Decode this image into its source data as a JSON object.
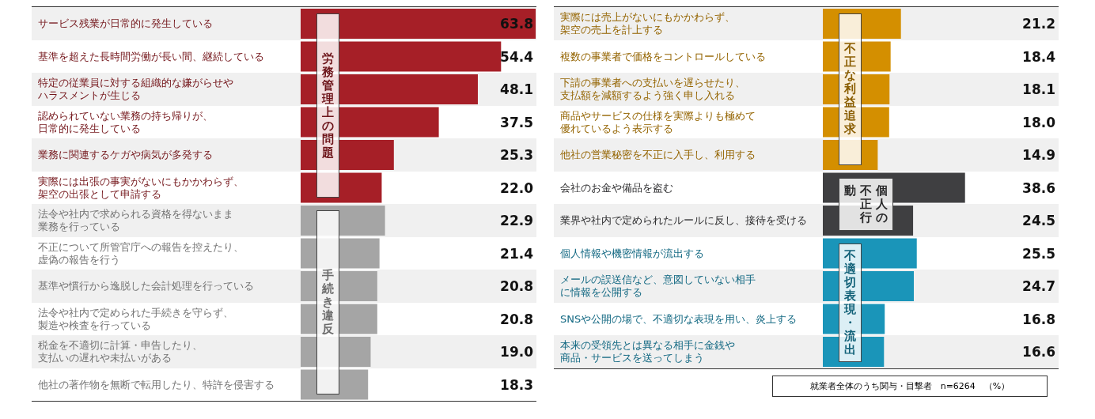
{
  "chart_data": [
    {
      "type": "bar",
      "orientation": "horizontal",
      "categories": [
        "サービス残業が日常的に発生している",
        "基準を超えた長時間労働が長い間、継続している",
        "特定の従業員に対する組織的な嫌がらせやハラスメントが生じる",
        "認められていない業務の持ち帰りが、日常的に発生している",
        "業務に関連するケガや病気が多発する",
        "実際には出張の事実がないにもかかわらず、架空の出張として申請する",
        "法令や社内で求められる資格を得ないまま業務を行っている",
        "不正について所管官庁への報告を控えたり、虚偽の報告を行う",
        "基準や慣行から逸脱した会計処理を行っている",
        "法令や社内で定められた手続きを守らず、製造や検査を行っている",
        "税金を不適切に計算・申告したり、支払いの遅れや未払いがある",
        "他社の著作物を無断で転用したり、特許を侵害する"
      ],
      "values": [
        63.8,
        54.4,
        48.1,
        37.5,
        25.3,
        22.0,
        22.9,
        21.4,
        20.8,
        20.8,
        19.0,
        18.3
      ],
      "value_labels": [
        "63.8",
        "54.4",
        "48.1",
        "37.5",
        "25.3",
        "22.0",
        "22.9",
        "21.4",
        "20.8",
        "20.8",
        "19.0",
        "18.3"
      ],
      "colors": [
        "#a61f27",
        "#a61f27",
        "#a61f27",
        "#a61f27",
        "#a61f27",
        "#a61f27",
        "#a5a5a5",
        "#a5a5a5",
        "#a5a5a5",
        "#a5a5a5",
        "#a5a5a5",
        "#a5a5a5"
      ],
      "xlim": [
        0,
        64
      ],
      "annotations": [
        "労務管理上の問題",
        "手続き違反"
      ]
    },
    {
      "type": "bar",
      "orientation": "horizontal",
      "categories": [
        "実際には売上がないにもかかわらず、架空の売上を計上する",
        "複数の事業者で価格をコントロールしている",
        "下請の事業者への支払いを遅らせたり、支払額を減額するよう強く申し入れる",
        "商品やサービスの仕様を実際よりも極めて優れているよう表示する",
        "他社の営業秘密を不正に入手し、利用する",
        "会社のお金や備品を盗む",
        "業界や社内で定められたルールに反し、接待を受ける",
        "個人情報や機密情報が流出する",
        "メールの誤送信など、意図していない相手に情報を公開する",
        "SNSや公開の場で、不適切な表現を用い、炎上する",
        "本来の受領先とは異なる相手に金銭や商品・サービスを送ってしまう"
      ],
      "values": [
        21.2,
        18.4,
        18.1,
        18.0,
        14.9,
        38.6,
        24.5,
        25.5,
        24.7,
        16.8,
        16.6
      ],
      "value_labels": [
        "21.2",
        "18.4",
        "18.1",
        "18.0",
        "14.9",
        "38.6",
        "24.5",
        "25.5",
        "24.7",
        "16.8",
        "16.6"
      ],
      "colors": [
        "#d48f00",
        "#d48f00",
        "#d48f00",
        "#d48f00",
        "#d48f00",
        "#3f3f41",
        "#3f3f41",
        "#1a95b9",
        "#1a95b9",
        "#1a95b9",
        "#1a95b9"
      ],
      "xlim": [
        0,
        64
      ],
      "annotations": [
        "不正な利益追求",
        "個人の不正行動",
        "不適切表現・流出",
        "就業者全体のうち関与・目撃者　n=6264　（%）"
      ]
    }
  ]
}
